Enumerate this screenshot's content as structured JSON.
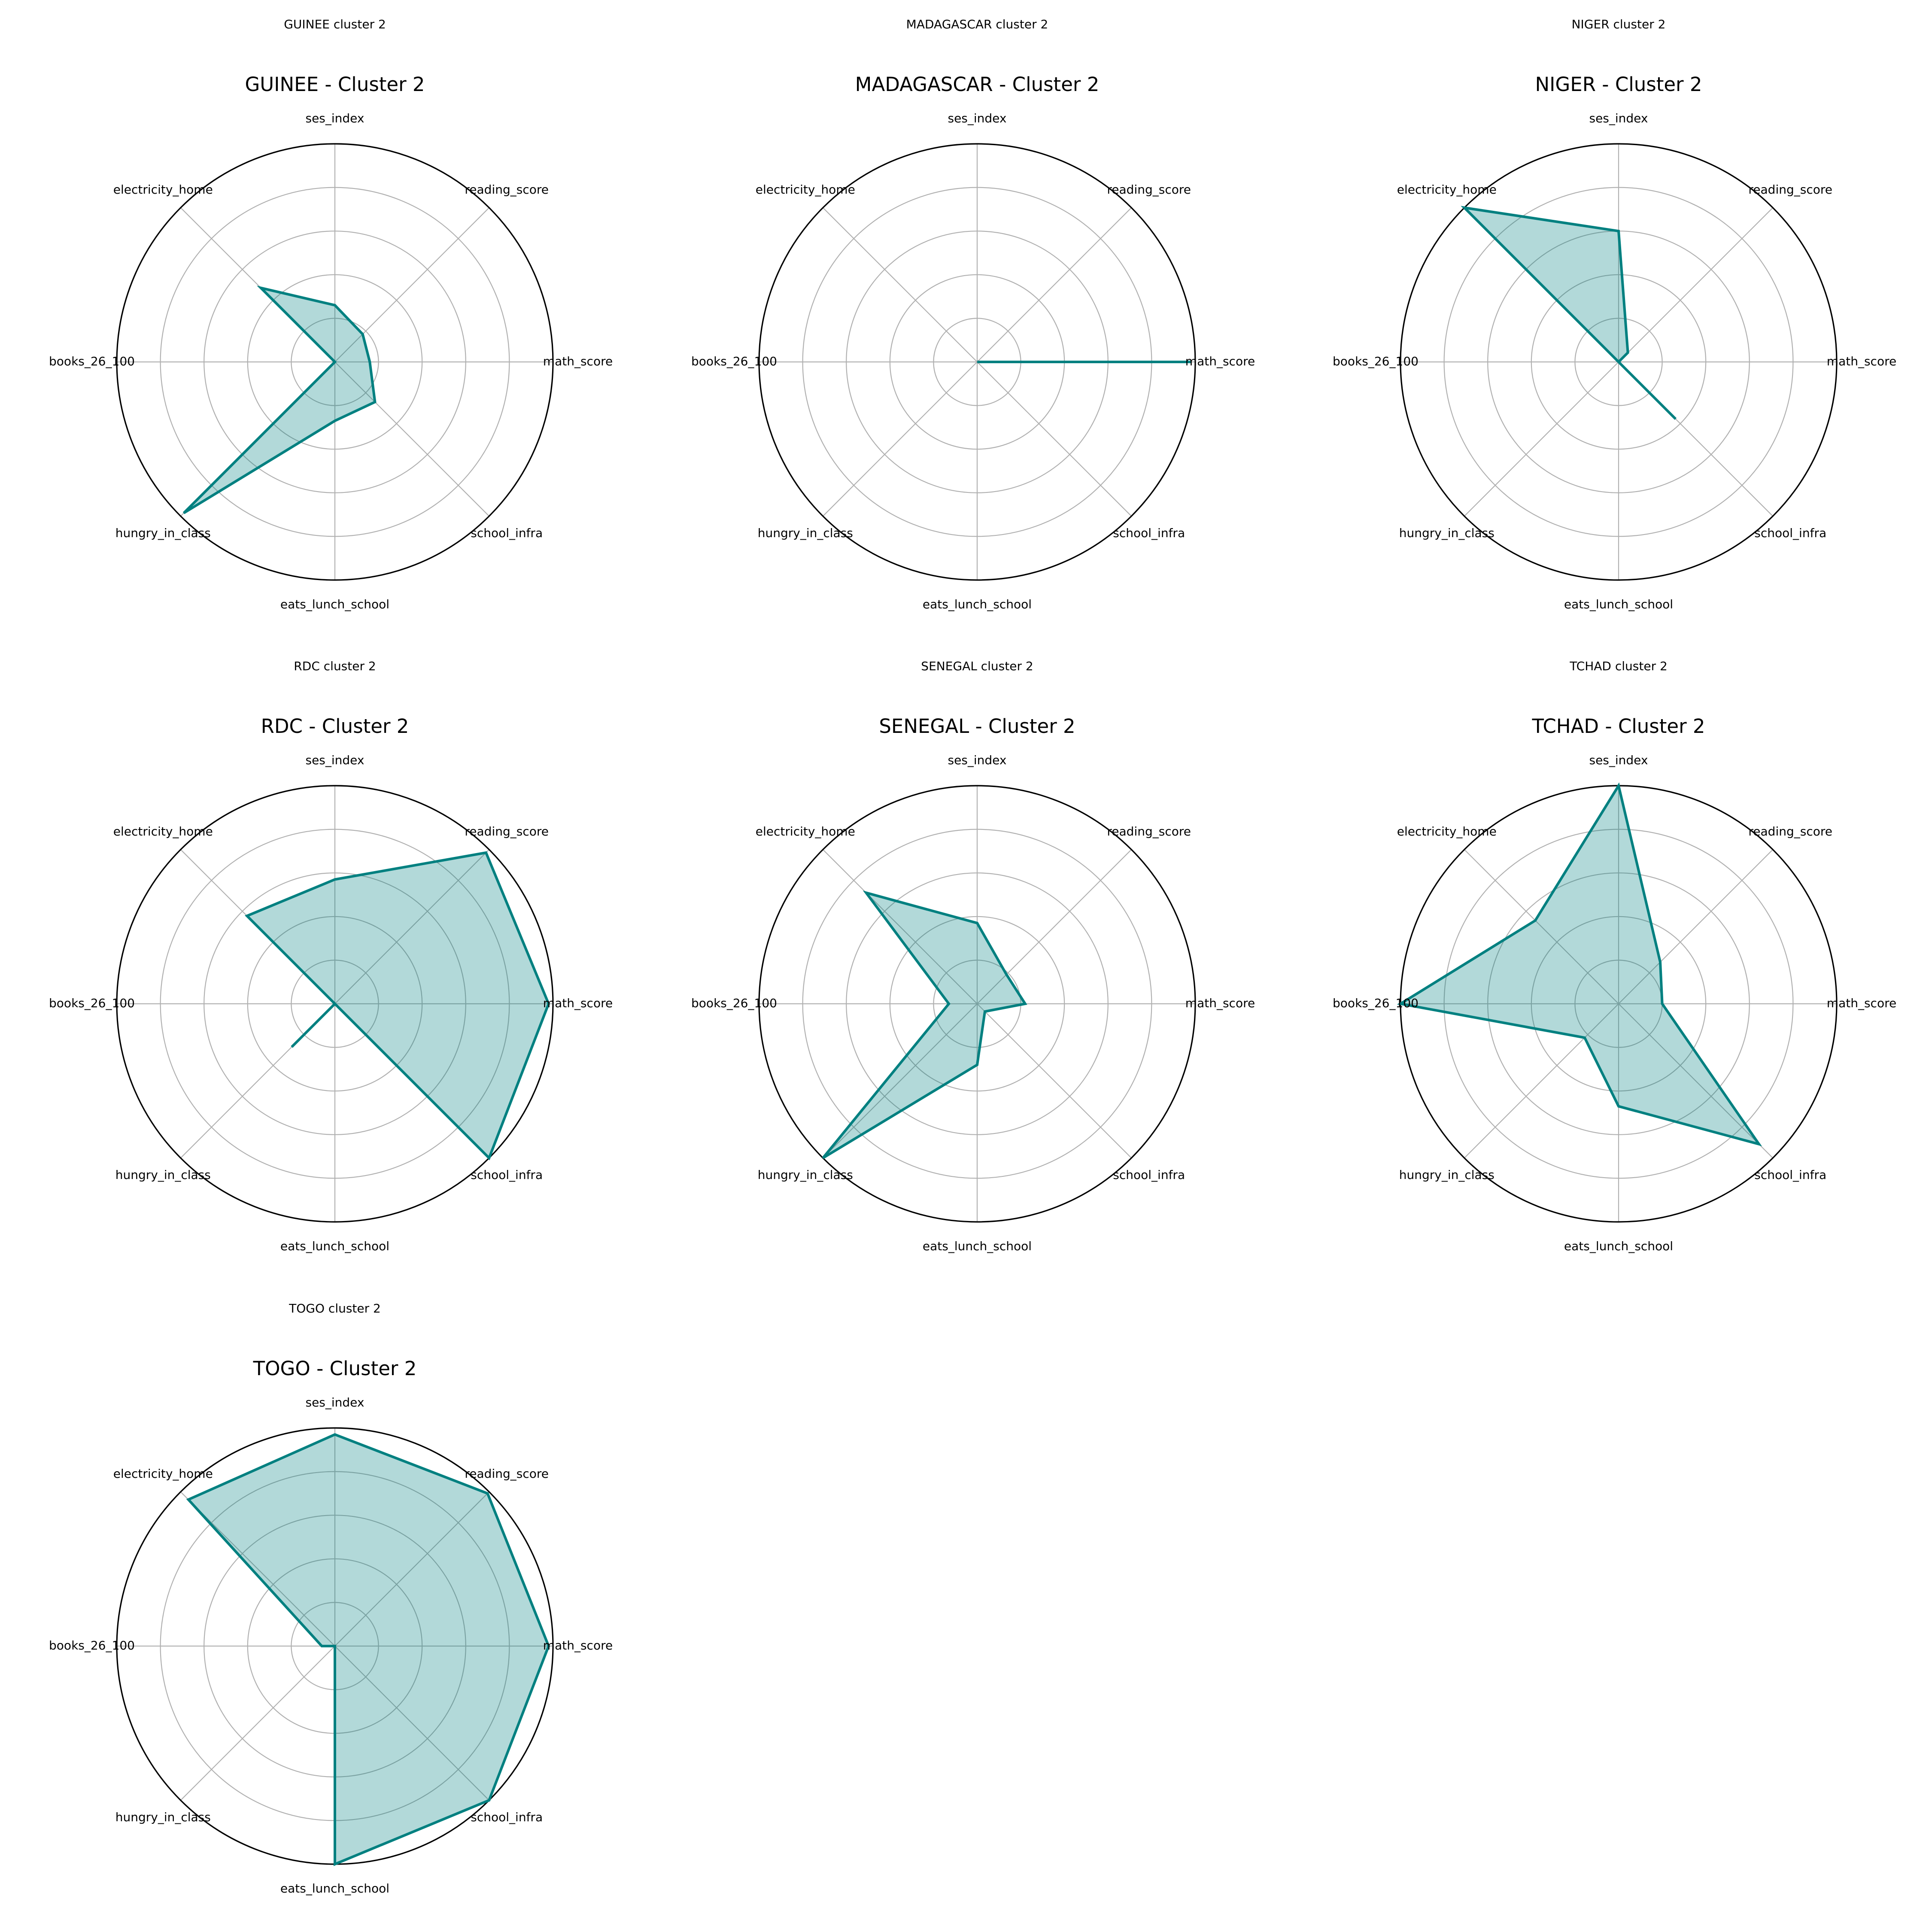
{
  "chart_data": [
    {
      "type": "radar",
      "suptitle": "GUINEE cluster 2",
      "title": "GUINEE - Cluster 2",
      "axes": [
        "math_score",
        "reading_score",
        "ses_index",
        "electricity_home",
        "books_26_100",
        "hungry_in_class",
        "eats_lunch_school",
        "school_infra"
      ],
      "values": [
        0.16,
        0.18,
        0.26,
        0.48,
        0.0,
        0.98,
        0.27,
        0.26
      ],
      "rlim": [
        0,
        1
      ],
      "rticks": [
        0.2,
        0.4,
        0.6,
        0.8
      ],
      "color": "#008080"
    },
    {
      "type": "radar",
      "suptitle": "MADAGASCAR cluster 2",
      "title": "MADAGASCAR - Cluster 2",
      "axes": [
        "math_score",
        "reading_score",
        "ses_index",
        "electricity_home",
        "books_26_100",
        "hungry_in_class",
        "eats_lunch_school",
        "school_infra"
      ],
      "values": [
        0.98,
        0.0,
        0.0,
        0.0,
        0.0,
        0.0,
        0.0,
        0.0
      ],
      "rlim": [
        0,
        1
      ],
      "rticks": [
        0.2,
        0.4,
        0.6,
        0.8
      ],
      "color": "#008080"
    },
    {
      "type": "radar",
      "suptitle": "NIGER cluster 2",
      "title": "NIGER - Cluster 2",
      "axes": [
        "math_score",
        "reading_score",
        "ses_index",
        "electricity_home",
        "books_26_100",
        "hungry_in_class",
        "eats_lunch_school",
        "school_infra"
      ],
      "values": [
        0.0,
        0.06,
        0.6,
        1.0,
        0.0,
        0.0,
        0.0,
        0.37
      ],
      "rlim": [
        0,
        1
      ],
      "rticks": [
        0.2,
        0.4,
        0.6,
        0.8
      ],
      "color": "#008080"
    },
    {
      "type": "radar",
      "suptitle": "RDC cluster 2",
      "title": "RDC - Cluster 2",
      "axes": [
        "math_score",
        "reading_score",
        "ses_index",
        "electricity_home",
        "books_26_100",
        "hungry_in_class",
        "eats_lunch_school",
        "school_infra"
      ],
      "values": [
        0.98,
        0.98,
        0.57,
        0.57,
        0.0,
        0.28,
        0.0,
        1.0
      ],
      "rlim": [
        0,
        1
      ],
      "rticks": [
        0.2,
        0.4,
        0.6,
        0.8
      ],
      "color": "#008080"
    },
    {
      "type": "radar",
      "suptitle": "SENEGAL cluster 2",
      "title": "SENEGAL - Cluster 2",
      "axes": [
        "math_score",
        "reading_score",
        "ses_index",
        "electricity_home",
        "books_26_100",
        "hungry_in_class",
        "eats_lunch_school",
        "school_infra"
      ],
      "values": [
        0.22,
        0.19,
        0.37,
        0.72,
        0.13,
        1.0,
        0.28,
        0.05
      ],
      "rlim": [
        0,
        1
      ],
      "rticks": [
        0.2,
        0.4,
        0.6,
        0.8
      ],
      "color": "#008080"
    },
    {
      "type": "radar",
      "suptitle": "TCHAD cluster 2",
      "title": "TCHAD - Cluster 2",
      "axes": [
        "math_score",
        "reading_score",
        "ses_index",
        "electricity_home",
        "books_26_100",
        "hungry_in_class",
        "eats_lunch_school",
        "school_infra"
      ],
      "values": [
        0.2,
        0.27,
        1.0,
        0.54,
        1.0,
        0.22,
        0.47,
        0.91
      ],
      "rlim": [
        0,
        1
      ],
      "rticks": [
        0.2,
        0.4,
        0.6,
        0.8
      ],
      "color": "#008080"
    },
    {
      "type": "radar",
      "suptitle": "TOGO cluster 2",
      "title": "TOGO - Cluster 2",
      "axes": [
        "math_score",
        "reading_score",
        "ses_index",
        "electricity_home",
        "books_26_100",
        "hungry_in_class",
        "eats_lunch_school",
        "school_infra"
      ],
      "values": [
        0.98,
        0.99,
        0.97,
        0.95,
        0.06,
        0.0,
        1.0,
        1.0
      ],
      "rlim": [
        0,
        1
      ],
      "rticks": [
        0.2,
        0.4,
        0.6,
        0.8
      ],
      "color": "#008080"
    }
  ]
}
